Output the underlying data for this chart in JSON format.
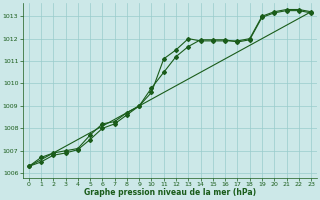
{
  "x": [
    0,
    1,
    2,
    3,
    4,
    5,
    6,
    7,
    8,
    9,
    10,
    11,
    12,
    13,
    14,
    15,
    16,
    17,
    18,
    19,
    20,
    21,
    22,
    23
  ],
  "line1": [
    1006.3,
    1006.7,
    1006.9,
    1007.0,
    1007.1,
    1007.7,
    1008.2,
    1008.3,
    1008.7,
    1009.0,
    1009.6,
    1011.1,
    1011.5,
    1012.0,
    1011.9,
    1011.9,
    1011.9,
    1011.9,
    1012.0,
    1013.0,
    1013.2,
    1013.3,
    1013.3,
    1013.2
  ],
  "line2": [
    1006.3,
    1006.5,
    1006.8,
    1006.9,
    1007.05,
    1007.5,
    1008.0,
    1008.2,
    1008.6,
    1009.0,
    1009.8,
    1010.5,
    1011.2,
    1011.65,
    1011.95,
    1011.95,
    1011.95,
    1011.85,
    1011.95,
    1012.95,
    1013.15,
    1013.25,
    1013.25,
    1013.15
  ],
  "line3_x": [
    0,
    23
  ],
  "line3_y": [
    1006.3,
    1013.2
  ],
  "ylim": [
    1005.8,
    1013.6
  ],
  "yticks": [
    1006,
    1007,
    1008,
    1009,
    1010,
    1011,
    1012,
    1013
  ],
  "xticks": [
    0,
    1,
    2,
    3,
    4,
    5,
    6,
    7,
    8,
    9,
    10,
    11,
    12,
    13,
    14,
    15,
    16,
    17,
    18,
    19,
    20,
    21,
    22,
    23
  ],
  "xlabel": "Graphe pression niveau de la mer (hPa)",
  "bg_color": "#cce8e8",
  "line_color": "#1a5c1a",
  "grid_color": "#99cccc",
  "figsize": [
    3.2,
    2.0
  ],
  "dpi": 100
}
